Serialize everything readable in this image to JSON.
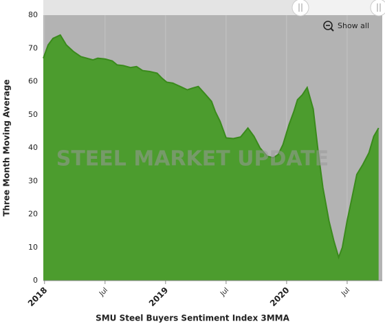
{
  "chart_data": {
    "type": "area",
    "watermark": "STEEL MARKET UPDATE",
    "button": "Show all",
    "xlabel": "SMU Steel Buyers Sentiment Index 3MMA",
    "ylabel": "Three Month Moving Average",
    "series": [
      {
        "name": "SMU Steel Buyers Sentiment Index 3MMA",
        "color": "#4c9c2e",
        "x": [
          2017.99,
          2018.03,
          2018.07,
          2018.13,
          2018.18,
          2018.24,
          2018.3,
          2018.35,
          2018.4,
          2018.44,
          2018.5,
          2018.56,
          2018.6,
          2018.65,
          2018.71,
          2018.76,
          2018.81,
          2018.87,
          2018.93,
          2018.97,
          2019.01,
          2019.06,
          2019.12,
          2019.18,
          2019.22,
          2019.27,
          2019.32,
          2019.38,
          2019.41,
          2019.45,
          2019.5,
          2019.56,
          2019.62,
          2019.68,
          2019.73,
          2019.78,
          2019.84,
          2019.89,
          2019.93,
          2019.97,
          2020.02,
          2020.06,
          2020.09,
          2020.13,
          2020.17,
          2020.22,
          2020.26,
          2020.3,
          2020.35,
          2020.39,
          2020.43,
          2020.46,
          2020.5,
          2020.54,
          2020.58,
          2020.63,
          2020.68,
          2020.72,
          2020.76
        ],
        "values": [
          67,
          71,
          73,
          74,
          71,
          69,
          67.5,
          67,
          66.5,
          67,
          66.8,
          66.2,
          65,
          64.8,
          64.2,
          64.5,
          63.3,
          63,
          62.5,
          61,
          59.8,
          59.5,
          58.5,
          57.5,
          58,
          58.5,
          56.5,
          54,
          51,
          48,
          43,
          42.8,
          43.3,
          46,
          43.5,
          40,
          37.5,
          37,
          38,
          41,
          47,
          51,
          54.5,
          56,
          58.2,
          51.7,
          39,
          28,
          18,
          12,
          7,
          10,
          18,
          25,
          32,
          35,
          38.5,
          43.5,
          46
        ]
      }
    ],
    "xlim": [
      2017.99,
      2020.79
    ],
    "xticks": [
      {
        "value": 2018,
        "label": "2018"
      },
      {
        "value": 2018.5,
        "label": "Jul"
      },
      {
        "value": 2019,
        "label": "2019"
      },
      {
        "value": 2019.5,
        "label": "Jul"
      },
      {
        "value": 2020,
        "label": "2020"
      },
      {
        "value": 2020.5,
        "label": "Jul"
      }
    ],
    "ylim": [
      0,
      80
    ],
    "yticks": [
      0,
      10,
      20,
      30,
      40,
      50,
      60,
      70,
      80
    ],
    "xgrid": true,
    "plot_background": "#b3b3b3"
  }
}
